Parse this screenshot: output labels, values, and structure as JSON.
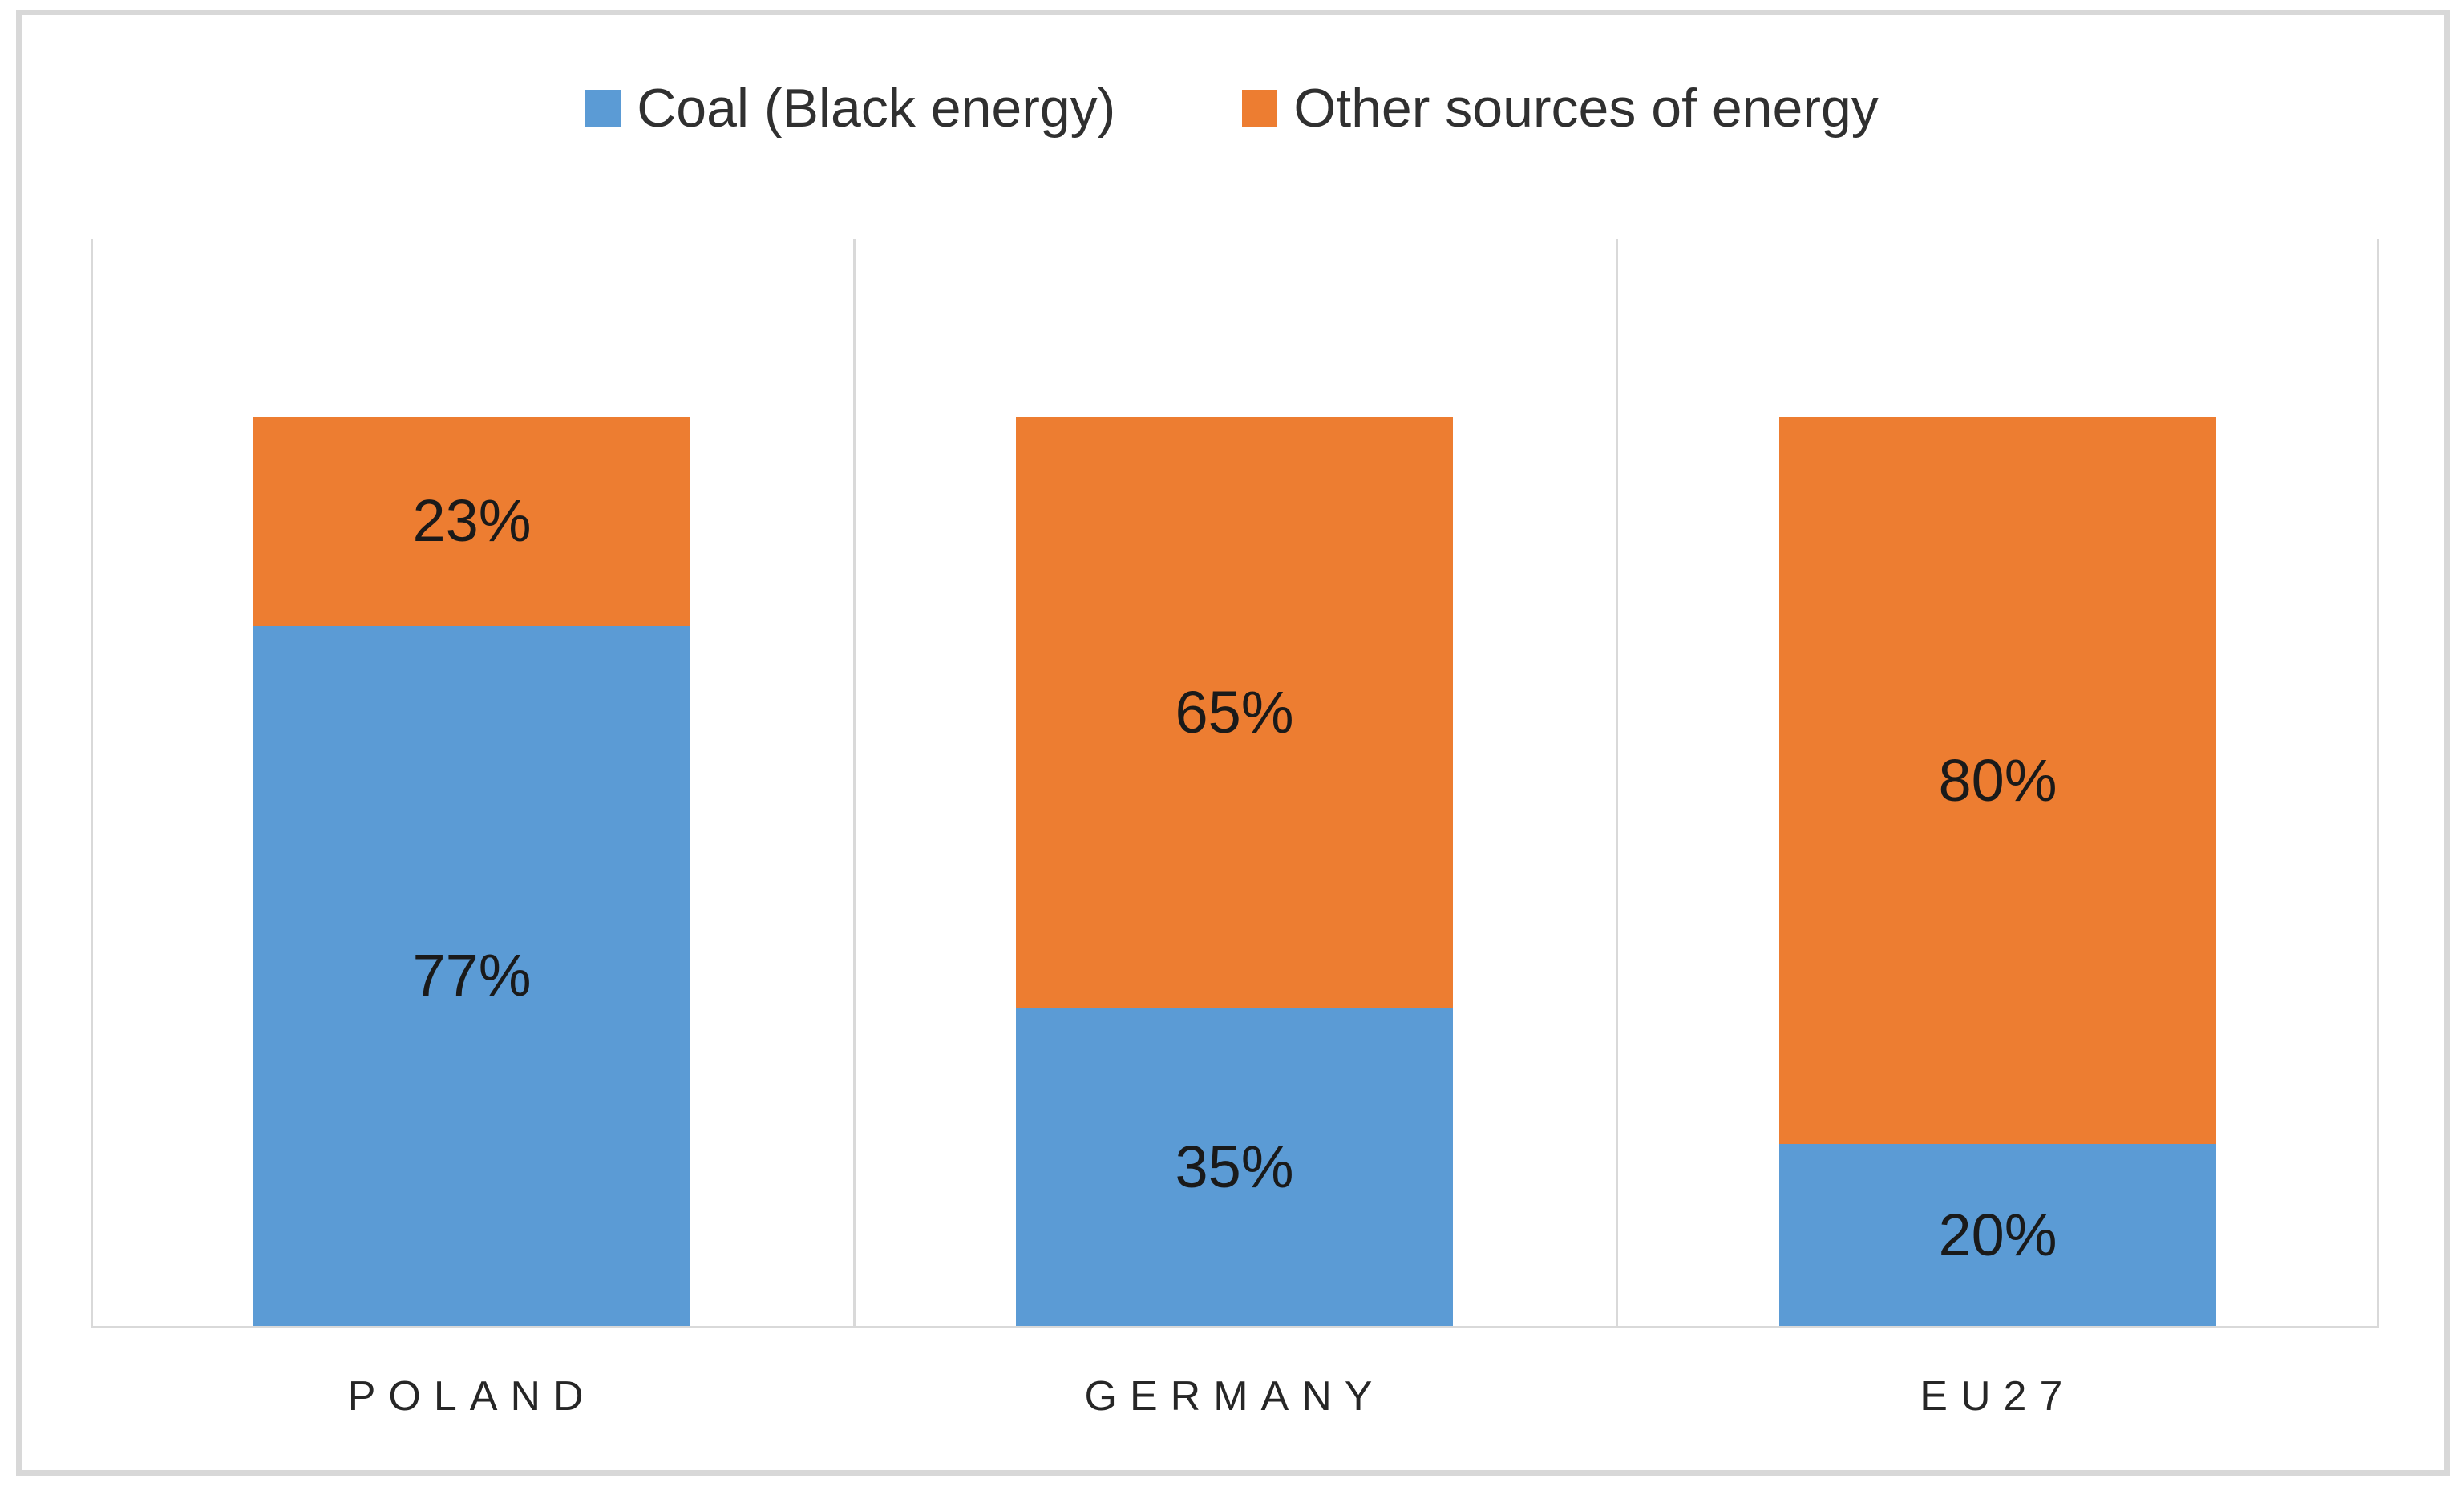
{
  "chart_data": {
    "type": "bar",
    "subtype": "stacked-100",
    "orientation": "vertical",
    "unit": "%",
    "categories": [
      "POLAND",
      "GERMANY",
      "EU27"
    ],
    "series": [
      {
        "name": "Coal (Black energy)",
        "color": "#5B9BD5",
        "values": [
          77,
          35,
          20
        ]
      },
      {
        "name": "Other sources of energy",
        "color": "#ED7D31",
        "values": [
          23,
          65,
          80
        ]
      }
    ],
    "data_labels": {
      "coal": [
        "77%",
        "35%",
        "20%"
      ],
      "other": [
        "23%",
        "65%",
        "80%"
      ]
    },
    "title": "",
    "xlabel": "",
    "ylabel": "",
    "ylim": [
      0,
      100
    ],
    "legend_position": "top-center",
    "grid": "vertical category separators only",
    "axis_line_color": "#D9D9D9",
    "frame_border_color": "#D8D8D8",
    "label_text_color": "#1A1A1A",
    "category_text_color": "#262626"
  }
}
